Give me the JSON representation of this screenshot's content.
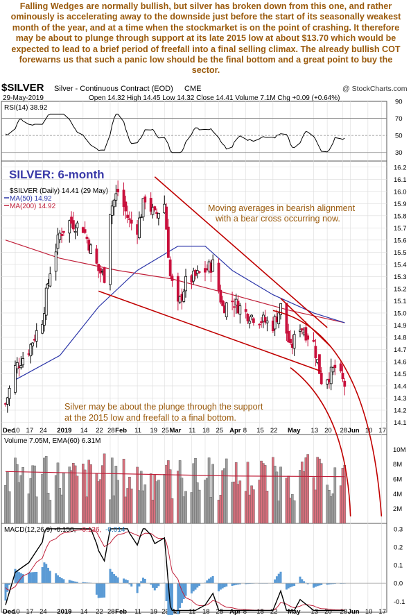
{
  "commentary": "Falling Wedges are normally bullish, but silver has broken down from this one, and rather ominously is accelerating away to the downside just before the start of its seasonally weakest month of the year, and at a time when the stockmarket is on the point of crashing. It therefore may be about to plunge through support at its late 2015 low at about $13.70 which would be expected to lead to a brief period of freefall into a final selling climax. The already bullish COT forewarns us that such a panic low should be the final bottom and a great point to buy the sector.",
  "header": {
    "symbol": "$SILVER",
    "description": "Silver - Continuous Contract (EOD)",
    "exchange": "CME",
    "watermark": "@ StockCharts.com",
    "date": "29-May-2019",
    "quote": "Open 14.32  High 14.45  Low 14.32  Close 14.41  Volume 7.1M  Chg +0.09 (+0.64%)"
  },
  "rsi_panel": {
    "label": "RSI(14) 38.92",
    "ticks": [
      90,
      70,
      50,
      30
    ]
  },
  "price_panel": {
    "big_label": "SILVER: 6-month",
    "legend": [
      "$SILVER (Daily) 14.41 (29 May)",
      "MA(50) 14.92",
      "MA(200) 14.92"
    ],
    "ticks": [
      16.2,
      16.1,
      16.0,
      15.9,
      15.8,
      15.7,
      15.6,
      15.5,
      15.4,
      15.3,
      15.2,
      15.1,
      15.0,
      14.9,
      14.8,
      14.7,
      14.6,
      14.5,
      14.4,
      14.3,
      14.2,
      14.1
    ],
    "annotation_top": [
      "Moving averages in bearish alignment",
      "with a bear cross occurring now."
    ],
    "annotation_bottom": [
      "Silver may be about the plunge through the support",
      "at the 2015 low and freefall to a final bottom."
    ]
  },
  "volume_panel": {
    "label": "Volume 7.05M, EMA(60) 6.31M",
    "ticks": [
      "10M",
      "8M",
      "6M",
      "4M",
      "2M"
    ]
  },
  "macd_panel": {
    "label_main": "MACD(12,26,9) -0.150,",
    "label_signal": "-0.136,",
    "label_hist": "-0.014",
    "ticks": [
      0.3,
      0.2,
      0.1,
      0.0,
      -0.1
    ]
  },
  "x_axis": {
    "labels": [
      "Dec",
      "10",
      "17",
      "24",
      "2019",
      "14",
      "22",
      "28",
      "Feb",
      "11",
      "19",
      "25",
      "Mar",
      "11",
      "18",
      "25",
      "Apr",
      "8",
      "15",
      "22",
      "May",
      "13",
      "20",
      "28",
      "Jun",
      "10",
      "17"
    ]
  },
  "colors": {
    "up": "#000000",
    "down": "#c8103c",
    "ma50": "#2b35a8",
    "ma200": "#c0203a",
    "trend": "#c00000",
    "note": "#9a5a0c",
    "title": "#3a3aa8"
  },
  "chart_data": {
    "type": "candlestick",
    "title": "SILVER: 6-month",
    "series": [
      {
        "name": "$SILVER (Daily)",
        "last": 14.41
      },
      {
        "name": "MA(50)",
        "last": 14.92
      },
      {
        "name": "MA(200)",
        "last": 14.92
      }
    ],
    "ylim": [
      14.1,
      16.2
    ],
    "close_path": [
      [
        "2018-12-05",
        14.25
      ],
      [
        "2018-12-10",
        14.55
      ],
      [
        "2018-12-17",
        14.7
      ],
      [
        "2018-12-24",
        14.95
      ],
      [
        "2018-12-28",
        15.35
      ],
      [
        "2019-01-02",
        15.65
      ],
      [
        "2019-01-07",
        15.75
      ],
      [
        "2019-01-14",
        15.7
      ],
      [
        "2019-01-22",
        15.35
      ],
      [
        "2019-01-25",
        15.3
      ],
      [
        "2019-01-28",
        15.85
      ],
      [
        "2019-02-01",
        16.0
      ],
      [
        "2019-02-07",
        15.75
      ],
      [
        "2019-02-11",
        15.7
      ],
      [
        "2019-02-15",
        15.95
      ],
      [
        "2019-02-20",
        15.8
      ],
      [
        "2019-02-25",
        15.9
      ],
      [
        "2019-02-28",
        15.3
      ],
      [
        "2019-03-04",
        15.05
      ],
      [
        "2019-03-08",
        15.25
      ],
      [
        "2019-03-13",
        15.3
      ],
      [
        "2019-03-18",
        15.35
      ],
      [
        "2019-03-22",
        15.4
      ],
      [
        "2019-03-27",
        15.05
      ],
      [
        "2019-04-01",
        15.1
      ],
      [
        "2019-04-08",
        15.0
      ],
      [
        "2019-04-15",
        14.95
      ],
      [
        "2019-04-22",
        14.9
      ],
      [
        "2019-04-26",
        15.05
      ],
      [
        "2019-05-01",
        14.7
      ],
      [
        "2019-05-06",
        14.9
      ],
      [
        "2019-05-13",
        14.75
      ],
      [
        "2019-05-17",
        14.45
      ],
      [
        "2019-05-22",
        14.5
      ],
      [
        "2019-05-24",
        14.55
      ],
      [
        "2019-05-29",
        14.41
      ]
    ],
    "ma50_path": [
      [
        "2018-12-10",
        14.45
      ],
      [
        "2019-01-02",
        14.65
      ],
      [
        "2019-01-22",
        15.05
      ],
      [
        "2019-02-11",
        15.35
      ],
      [
        "2019-03-04",
        15.55
      ],
      [
        "2019-03-18",
        15.55
      ],
      [
        "2019-04-01",
        15.35
      ],
      [
        "2019-04-22",
        15.15
      ],
      [
        "2019-05-13",
        15.0
      ],
      [
        "2019-05-29",
        14.92
      ]
    ],
    "ma200_path": [
      [
        "2018-12-05",
        15.6
      ],
      [
        "2019-01-02",
        15.45
      ],
      [
        "2019-02-01",
        15.35
      ],
      [
        "2019-03-01",
        15.28
      ],
      [
        "2019-04-01",
        15.15
      ],
      [
        "2019-05-01",
        15.02
      ],
      [
        "2019-05-29",
        14.92
      ]
    ],
    "rsi_range": [
      20,
      90
    ],
    "rsi_last": 38.92,
    "volume_last_millions": 7.05,
    "volume_ema60_millions": 6.31,
    "macd": {
      "macd": -0.15,
      "signal": -0.136,
      "histogram": -0.014,
      "ylim": [
        -0.15,
        0.3
      ]
    }
  }
}
